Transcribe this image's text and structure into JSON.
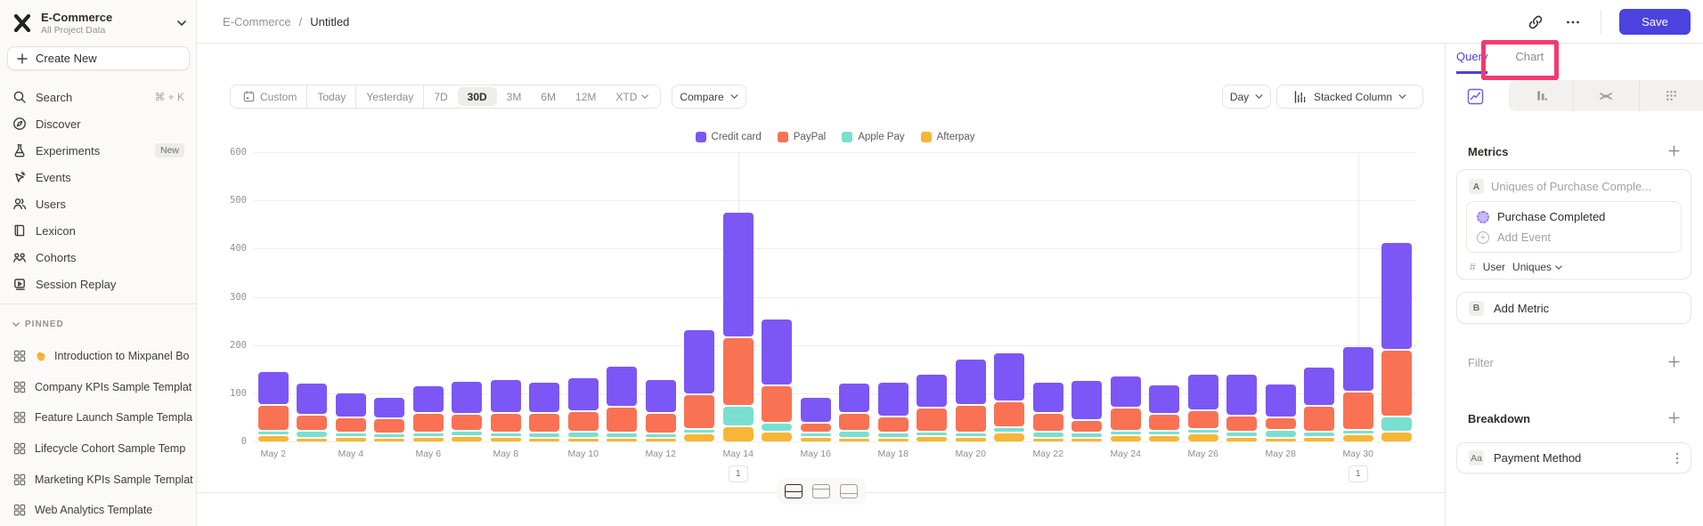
{
  "sidebar": {
    "project_name": "E-Commerce",
    "project_scope": "All Project Data",
    "create_new_label": "Create New",
    "nav": [
      {
        "label": "Search",
        "icon": "search",
        "shortcut": "⌘ + K"
      },
      {
        "label": "Discover",
        "icon": "discover"
      },
      {
        "label": "Experiments",
        "icon": "experiments",
        "badge": "New"
      },
      {
        "label": "Events",
        "icon": "events"
      },
      {
        "label": "Users",
        "icon": "users"
      },
      {
        "label": "Lexicon",
        "icon": "lexicon"
      },
      {
        "label": "Cohorts",
        "icon": "cohorts"
      },
      {
        "label": "Session Replay",
        "icon": "session-replay"
      }
    ],
    "pinned_header": "PINNED",
    "pinned": [
      {
        "label": "Introduction to Mixpanel Bo",
        "emoji": "wave"
      },
      {
        "label": "Company KPIs Sample Templat"
      },
      {
        "label": "Feature Launch Sample Templa"
      },
      {
        "label": "Lifecycle Cohort Sample Temp"
      },
      {
        "label": "Marketing KPIs Sample Templat"
      },
      {
        "label": "Web Analytics Template"
      }
    ]
  },
  "topbar": {
    "breadcrumb_project": "E-Commerce",
    "breadcrumb_sep": "/",
    "breadcrumb_page": "Untitled",
    "save_label": "Save"
  },
  "toolbar": {
    "ranges": [
      "Custom",
      "Today",
      "Yesterday",
      "7D",
      "30D",
      "3M",
      "6M",
      "12M",
      "XTD"
    ],
    "selected_range": "30D",
    "compare_label": "Compare",
    "granularity_label": "Day",
    "chart_style_label": "Stacked Column"
  },
  "right_panel": {
    "tab_query": "Query",
    "tab_chart": "Chart",
    "metrics_header": "Metrics",
    "metric_a_badge": "A",
    "metric_a_placeholder": "Uniques of Purchase Comple...",
    "metric_a_event": "Purchase Completed",
    "metric_a_add_event": "Add Event",
    "count_symbol": "#",
    "count_type": "User",
    "count_value": "Uniques",
    "metric_b_badge": "B",
    "metric_b_label": "Add Metric",
    "filter_header": "Filter",
    "breakdown_header": "Breakdown",
    "breakdown_badge": "Aa",
    "breakdown_label": "Payment Method"
  },
  "annotation": {
    "color": "#f43a6f",
    "target": "Chart tab"
  },
  "colors": {
    "accent": "#4b42e0",
    "sidebar_bg": "#fbfaf8",
    "border": "#e8e7e4"
  },
  "chart_data": {
    "type": "bar",
    "stacked": true,
    "x": [
      "May 2",
      "May 3",
      "May 4",
      "May 5",
      "May 6",
      "May 7",
      "May 8",
      "May 9",
      "May 10",
      "May 11",
      "May 12",
      "May 13",
      "May 14",
      "May 15",
      "May 16",
      "May 17",
      "May 18",
      "May 19",
      "May 20",
      "May 21",
      "May 22",
      "May 23",
      "May 24",
      "May 25",
      "May 26",
      "May 27",
      "May 28",
      "May 29",
      "May 30",
      "May 31"
    ],
    "x_tick_every": 2,
    "series": [
      {
        "name": "Credit card",
        "color": "#7c57f5",
        "values": [
          70,
          65,
          52,
          45,
          57,
          67,
          68,
          64,
          68,
          83,
          70,
          134,
          260,
          137,
          52,
          62,
          71,
          68,
          95,
          100,
          63,
          82,
          65,
          60,
          74,
          86,
          68,
          81,
          93,
          222
        ]
      },
      {
        "name": "PayPal",
        "color": "#f97253",
        "values": [
          52,
          33,
          30,
          29,
          39,
          35,
          40,
          40,
          42,
          54,
          40,
          70,
          142,
          77,
          19,
          36,
          33,
          49,
          57,
          54,
          38,
          25,
          48,
          35,
          39,
          32,
          25,
          52,
          78,
          137
        ]
      },
      {
        "name": "Apple Pay",
        "color": "#79dfd2",
        "values": [
          8,
          14,
          5,
          5,
          7,
          10,
          9,
          10,
          12,
          9,
          9,
          6,
          41,
          17,
          9,
          13,
          10,
          9,
          8,
          10,
          12,
          11,
          8,
          8,
          8,
          11,
          16,
          11,
          9,
          31
        ]
      },
      {
        "name": "Afterpay",
        "color": "#f7b637",
        "values": [
          14,
          7,
          10,
          9,
          10,
          12,
          10,
          7,
          6,
          9,
          3,
          18,
          32,
          22,
          10,
          5,
          4,
          12,
          10,
          19,
          9,
          8,
          13,
          13,
          17,
          10,
          5,
          10,
          15,
          21
        ]
      }
    ],
    "ylim": [
      0,
      600
    ],
    "yticks": [
      0,
      100,
      200,
      300,
      400,
      500,
      600
    ],
    "grid": true,
    "legend_position": "top-center",
    "annotations": [
      {
        "x": "May 14",
        "label": "1"
      },
      {
        "x": "May 30",
        "label": "1"
      }
    ]
  }
}
